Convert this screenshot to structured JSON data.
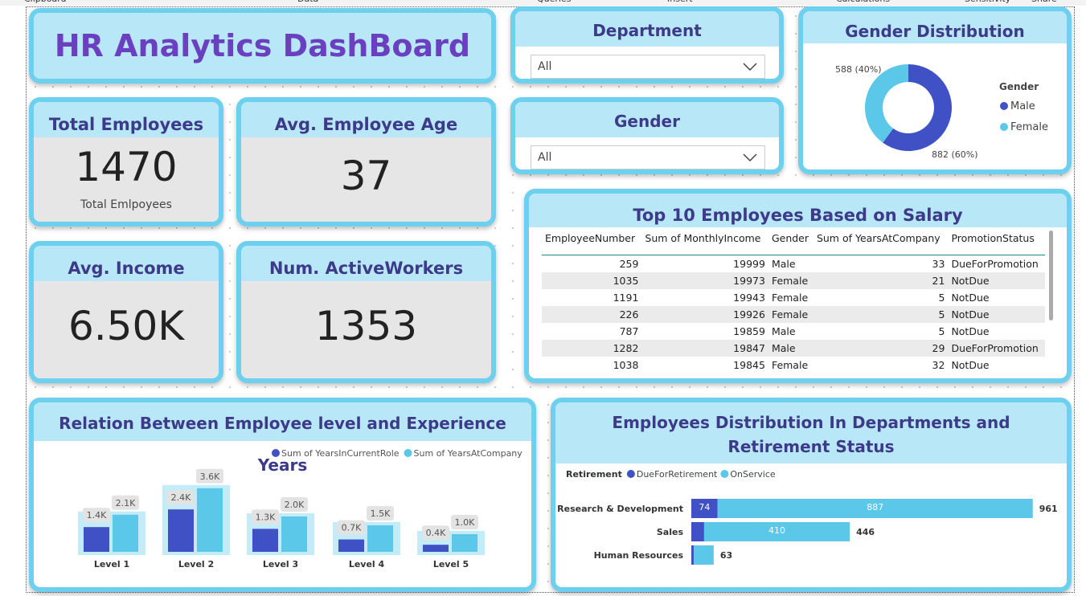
{
  "ribbon": [
    "Clipboard",
    "Data",
    "Queries",
    "Insert",
    "Calculations",
    "Sensitivity",
    "Share"
  ],
  "title": "HR Analytics DashBoard",
  "cards": [
    {
      "title": "Total Employees",
      "value": "1470",
      "caption": "Total Emlpoyees"
    },
    {
      "title": "Avg. Employee Age",
      "value": "37"
    },
    {
      "title": "Avg. Income",
      "value": "6.50K"
    },
    {
      "title": "Num. ActiveWorkers",
      "value": "1353"
    }
  ],
  "slicers": [
    {
      "title": "Department",
      "value": "All"
    },
    {
      "title": "Gender",
      "value": "All"
    }
  ],
  "table": {
    "title": "Top 10 Employees Based on Salary",
    "columns": [
      "EmployeeNumber",
      "Sum of MonthlyIncome",
      "Gender",
      "Sum of YearsAtCompany",
      "PromotionStatus"
    ],
    "rows": [
      [
        259,
        19999,
        "Male",
        33,
        "DueForPromotion"
      ],
      [
        1035,
        19973,
        "Female",
        21,
        "NotDue"
      ],
      [
        1191,
        19943,
        "Female",
        5,
        "NotDue"
      ],
      [
        226,
        19926,
        "Female",
        5,
        "NotDue"
      ],
      [
        787,
        19859,
        "Male",
        5,
        "NotDue"
      ],
      [
        1282,
        19847,
        "Male",
        29,
        "DueForPromotion"
      ],
      [
        1038,
        19845,
        "Female",
        32,
        "NotDue"
      ]
    ]
  },
  "chart_data": [
    {
      "type": "pie",
      "title": "Gender Distribution",
      "legend_title": "Gender",
      "categories": [
        "Male",
        "Female"
      ],
      "values": [
        882,
        588
      ],
      "value_labels": [
        "882 (60%)",
        "588 (40%)"
      ],
      "colors": [
        "#3f51c4",
        "#5bc8ea"
      ]
    },
    {
      "type": "bar",
      "title": "Relation Between Employee level and Experience Years",
      "categories": [
        "Level 1",
        "Level 2",
        "Level 3",
        "Level 4",
        "Level 5"
      ],
      "series": [
        {
          "name": "Sum of YearsInCurrentRole",
          "color": "#3f51c4",
          "values": [
            1400,
            2400,
            1300,
            700,
            400
          ],
          "value_labels": [
            "1.4K",
            "2.4K",
            "1.3K",
            "0.7K",
            "0.4K"
          ]
        },
        {
          "name": "Sum of YearsAtCompany",
          "color": "#5bc8ea",
          "values": [
            2100,
            3600,
            2000,
            1500,
            1000
          ],
          "value_labels": [
            "2.1K",
            "3.6K",
            "2.0K",
            "1.5K",
            "1.0K"
          ]
        }
      ]
    },
    {
      "type": "stacked-bar",
      "title": "Employees Distribution In Departments and Retirement Status",
      "legend_title": "Retirement",
      "categories": [
        "Research & Development",
        "Sales",
        "Human Resources"
      ],
      "series": [
        {
          "name": "DueForRetirement",
          "color": "#3f51c4",
          "values": [
            74,
            36,
            7
          ]
        },
        {
          "name": "OnService",
          "color": "#5bc8ea",
          "values": [
            887,
            410,
            56
          ]
        }
      ],
      "totals": [
        961,
        446,
        63
      ]
    }
  ]
}
